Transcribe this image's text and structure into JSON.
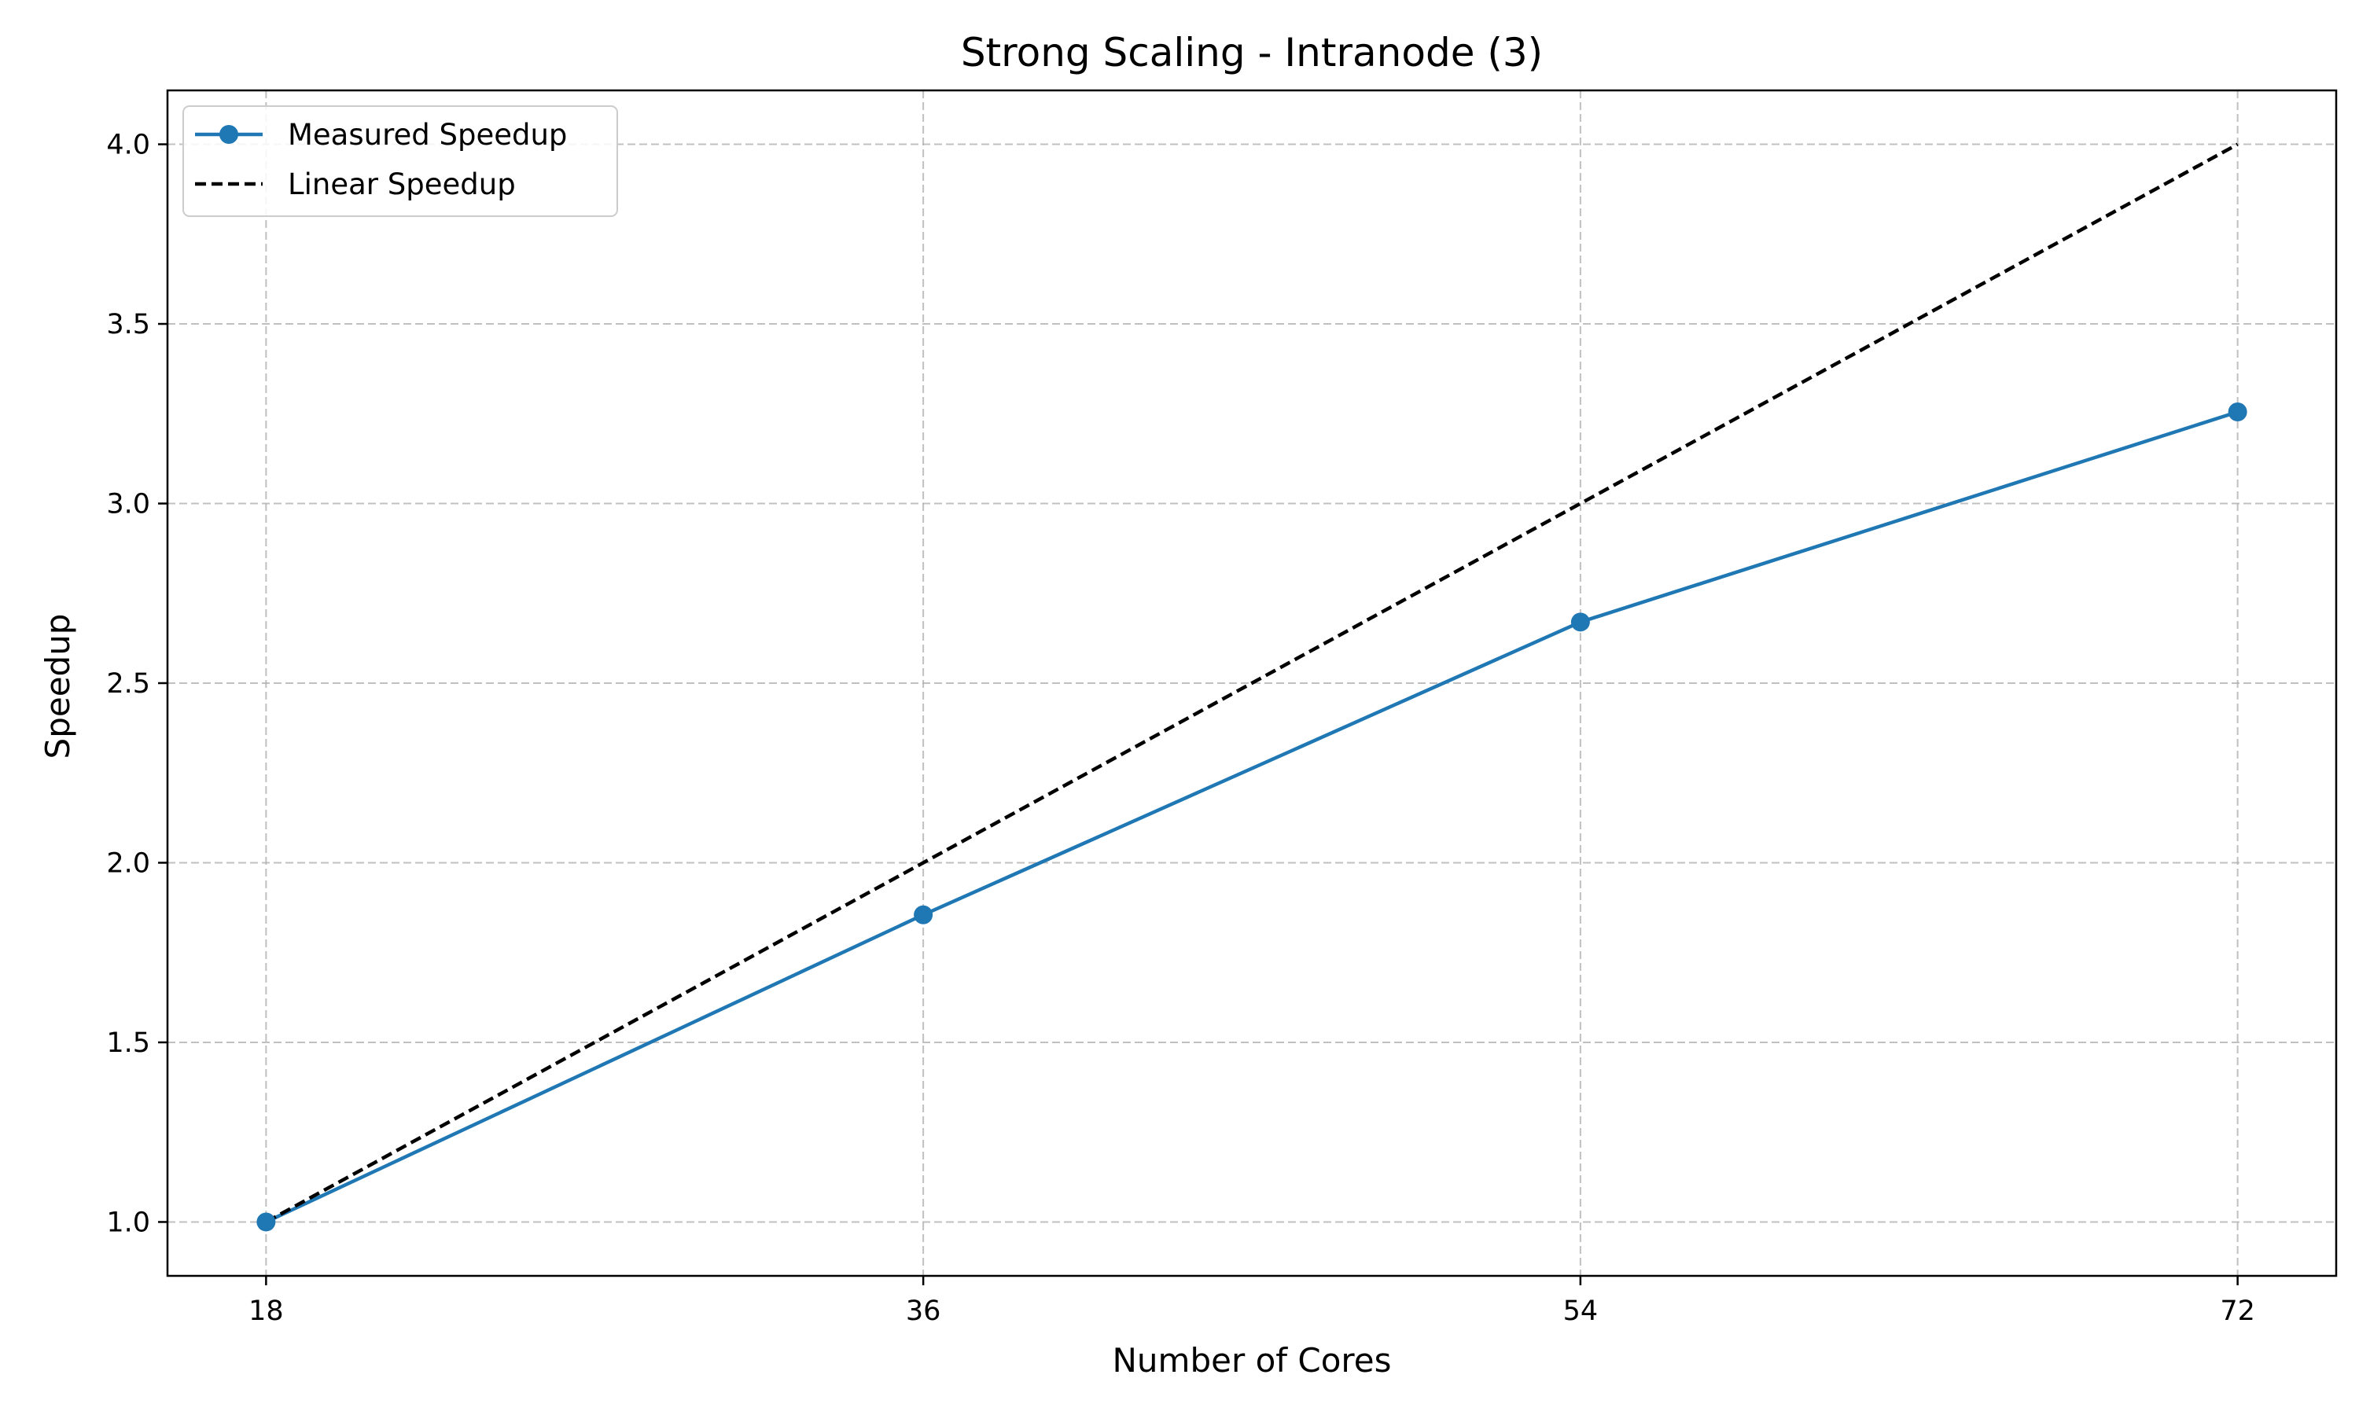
{
  "chart_data": {
    "type": "line",
    "title": "Strong Scaling - Intranode (3)",
    "xlabel": "Number of Cores",
    "ylabel": "Speedup",
    "x": [
      18,
      36,
      54,
      72
    ],
    "xticks": [
      "18",
      "36",
      "54",
      "72"
    ],
    "yticks": [
      "1.0",
      "1.5",
      "2.0",
      "2.5",
      "3.0",
      "3.5",
      "4.0"
    ],
    "xlim": [
      15.3,
      74.7
    ],
    "ylim": [
      0.85,
      4.15
    ],
    "grid": true,
    "legend_position": "top-left",
    "series": [
      {
        "name": "Measured Speedup",
        "values": [
          1.0,
          1.855,
          2.67,
          3.255
        ],
        "color": "#1f77b4",
        "style": "solid",
        "marker": "circle"
      },
      {
        "name": "Linear Speedup",
        "values": [
          1.0,
          2.0,
          3.0,
          4.0
        ],
        "color": "#000000",
        "style": "dashed",
        "marker": "none"
      }
    ]
  }
}
